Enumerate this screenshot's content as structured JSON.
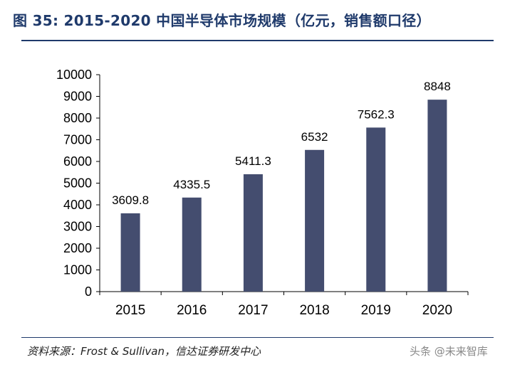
{
  "title": "图 35: 2015-2020 中国半导体市场规模（亿元，销售额口径）",
  "source": "资料来源：Frost & Sullivan，信达证券研发中心",
  "watermark": "头条 @未来智库",
  "colors": {
    "bar": "#444d6f",
    "accent": "#1f3a6b",
    "axis": "#000000"
  },
  "chart_data": {
    "type": "bar",
    "title": "图 35: 2015-2020 中国半导体市场规模（亿元，销售额口径）",
    "xlabel": "",
    "ylabel": "",
    "ylim": [
      0,
      10000
    ],
    "y_ticks": [
      "0",
      "1000",
      "2000",
      "3000",
      "4000",
      "5000",
      "6000",
      "7000",
      "8000",
      "9000",
      "10000"
    ],
    "categories": [
      "2015",
      "2016",
      "2017",
      "2018",
      "2019",
      "2020"
    ],
    "values": [
      3609.8,
      4335.5,
      5411.3,
      6532,
      7562.3,
      8848
    ],
    "data_labels": [
      "3609.8",
      "4335.5",
      "5411.3",
      "6532",
      "7562.3",
      "8848"
    ],
    "grid": false,
    "legend": "none"
  }
}
